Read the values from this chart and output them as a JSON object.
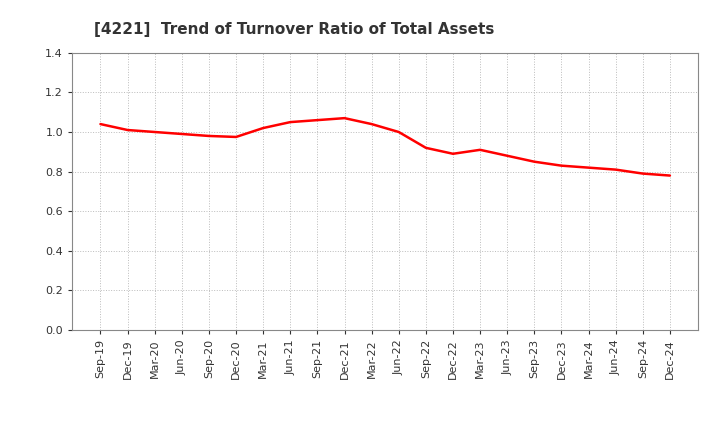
{
  "title": "[4221]  Trend of Turnover Ratio of Total Assets",
  "line_color": "#FF0000",
  "background_color": "#FFFFFF",
  "grid_color": "#AAAAAA",
  "ylim": [
    0.0,
    1.4
  ],
  "yticks": [
    0.0,
    0.2,
    0.4,
    0.6,
    0.8,
    1.0,
    1.2,
    1.4
  ],
  "labels": [
    "Sep-19",
    "Dec-19",
    "Mar-20",
    "Jun-20",
    "Sep-20",
    "Dec-20",
    "Mar-21",
    "Jun-21",
    "Sep-21",
    "Dec-21",
    "Mar-22",
    "Jun-22",
    "Sep-22",
    "Dec-22",
    "Mar-23",
    "Jun-23",
    "Sep-23",
    "Dec-23",
    "Mar-24",
    "Jun-24",
    "Sep-24",
    "Dec-24"
  ],
  "values": [
    1.04,
    1.01,
    1.0,
    0.99,
    0.98,
    0.975,
    1.02,
    1.05,
    1.06,
    1.07,
    1.04,
    1.0,
    0.92,
    0.89,
    0.91,
    0.88,
    0.85,
    0.83,
    0.82,
    0.81,
    0.79,
    0.78
  ],
  "title_fontsize": 11,
  "tick_fontsize": 8,
  "title_color": "#333333"
}
